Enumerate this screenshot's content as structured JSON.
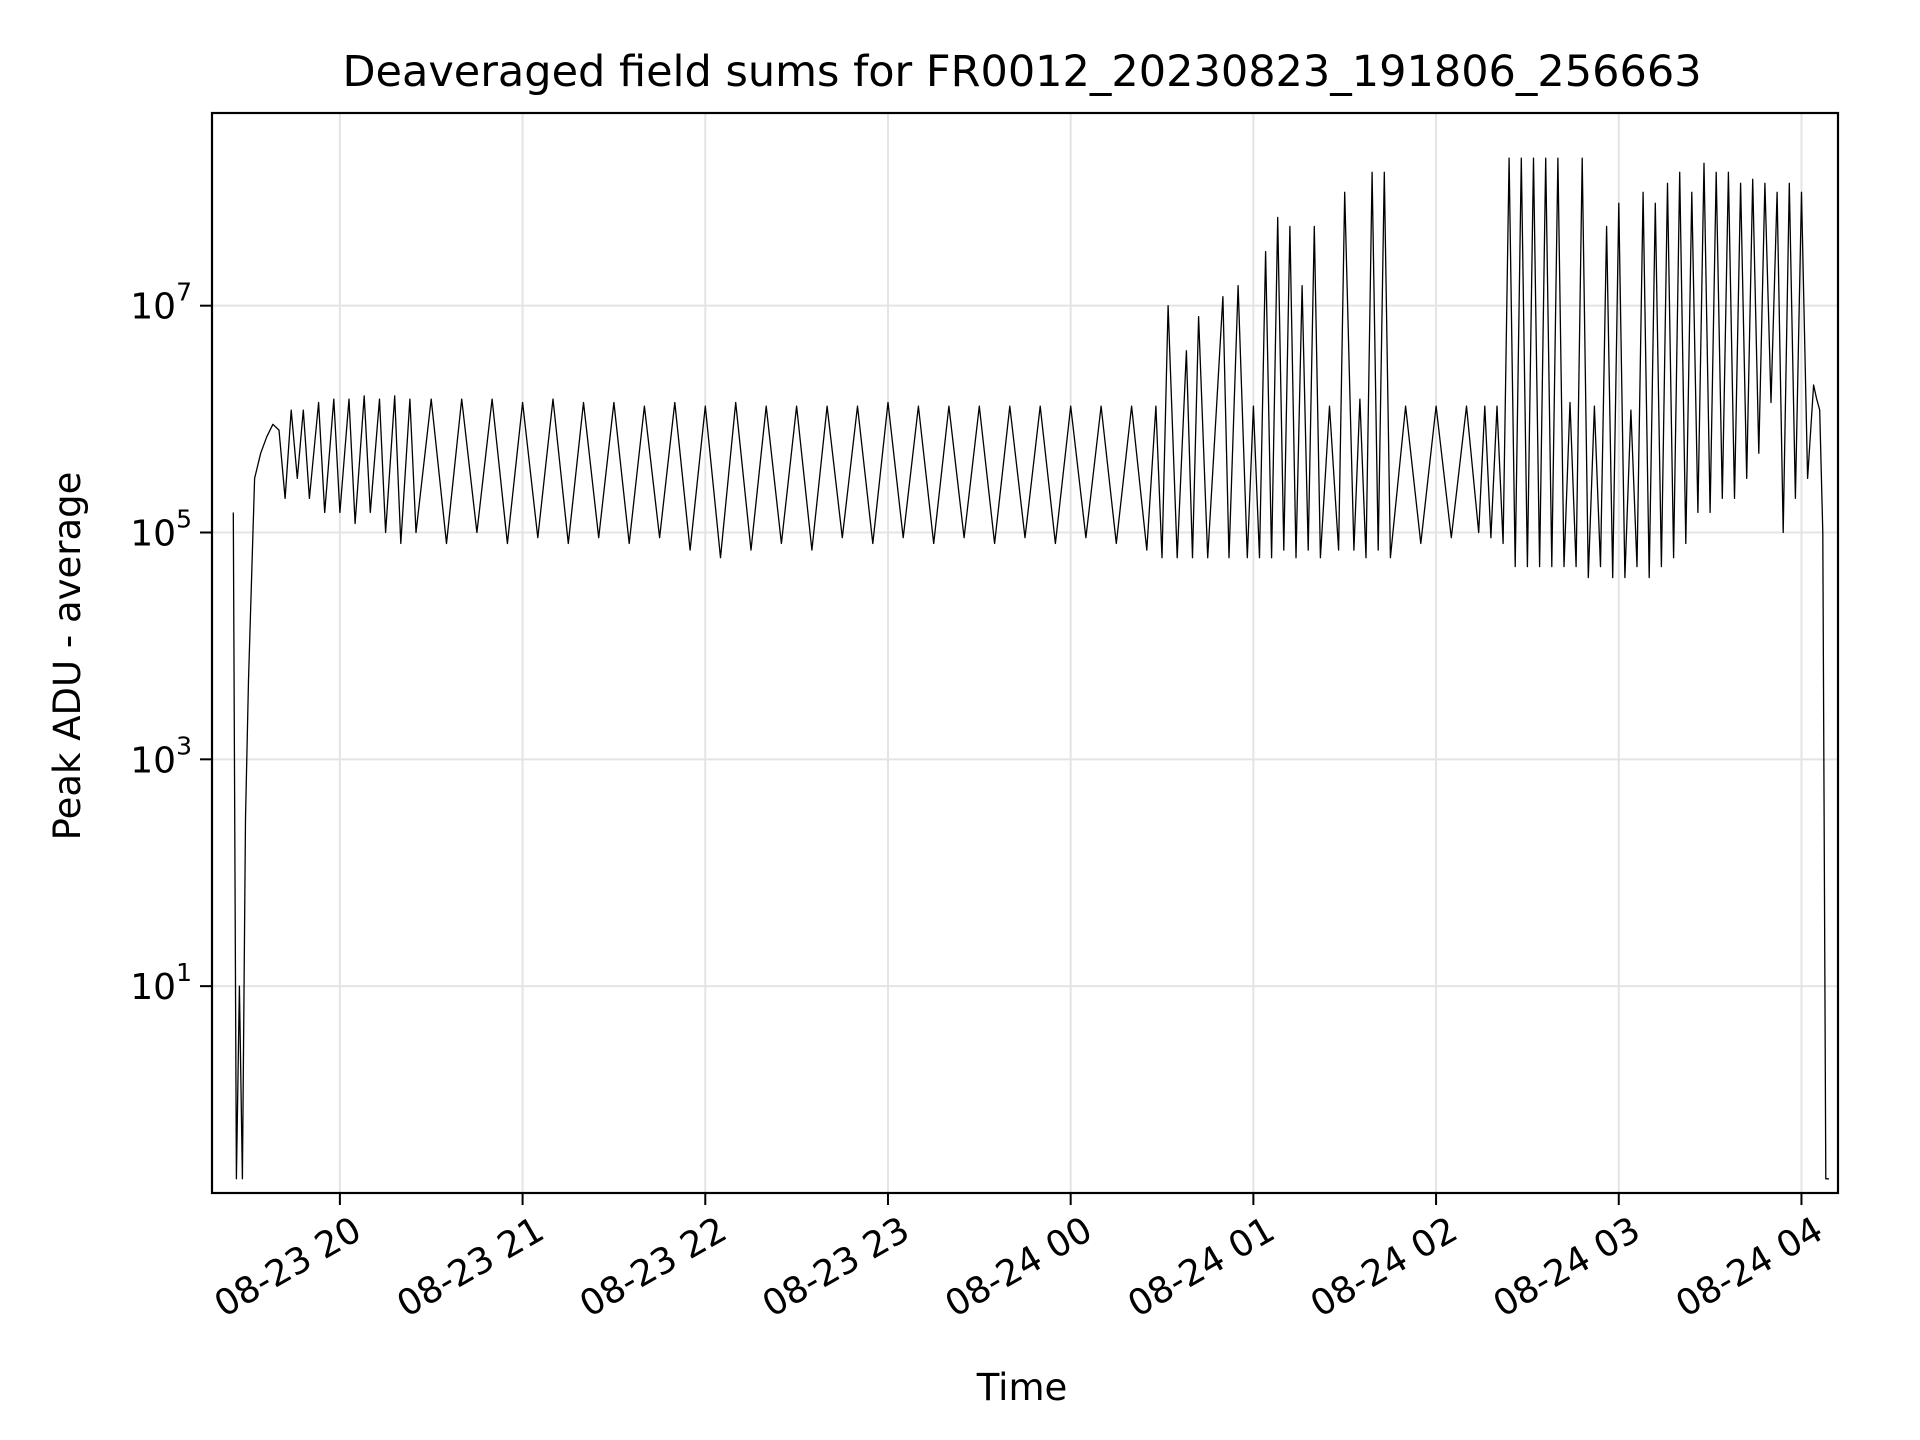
{
  "chart_data": {
    "type": "line",
    "title": "Deaveraged field sums for FR0012_20230823_191806_256663",
    "xlabel": "Time",
    "ylabel": "Peak ADU - average",
    "xscale": "time",
    "yscale": "log",
    "xlim": [
      "2023-08-23 19:18",
      "2023-08-24 04:12"
    ],
    "ylim": [
      0.15,
      500000000
    ],
    "grid": true,
    "line_color": "#000000",
    "grid_color": "#e4e4e4",
    "x_ticks": [
      {
        "value": "2023-08-23 20:00",
        "label": "08-23 20"
      },
      {
        "value": "2023-08-23 21:00",
        "label": "08-23 21"
      },
      {
        "value": "2023-08-23 22:00",
        "label": "08-23 22"
      },
      {
        "value": "2023-08-23 23:00",
        "label": "08-23 23"
      },
      {
        "value": "2023-08-24 00:00",
        "label": "08-24 00"
      },
      {
        "value": "2023-08-24 01:00",
        "label": "08-24 01"
      },
      {
        "value": "2023-08-24 02:00",
        "label": "08-24 02"
      },
      {
        "value": "2023-08-24 03:00",
        "label": "08-24 03"
      },
      {
        "value": "2023-08-24 04:00",
        "label": "08-24 04"
      }
    ],
    "y_ticks": [
      {
        "value": 10,
        "base": "10",
        "exp": "1"
      },
      {
        "value": 1000,
        "base": "10",
        "exp": "3"
      },
      {
        "value": 100000,
        "base": "10",
        "exp": "5"
      },
      {
        "value": 10000000,
        "base": "10",
        "exp": "7"
      }
    ],
    "series": [
      {
        "x": [
          "2023-08-23 19:25",
          "2023-08-23 19:26",
          "2023-08-23 19:27",
          "2023-08-23 19:28",
          "2023-08-23 19:29",
          "2023-08-23 19:30",
          "2023-08-23 19:32",
          "2023-08-23 19:34",
          "2023-08-23 19:36",
          "2023-08-23 19:38",
          "2023-08-23 19:40",
          "2023-08-23 19:42",
          "2023-08-23 19:44",
          "2023-08-23 19:46",
          "2023-08-23 19:48",
          "2023-08-23 19:50",
          "2023-08-23 19:53",
          "2023-08-23 19:55",
          "2023-08-23 19:58",
          "2023-08-23 20:00",
          "2023-08-23 20:03",
          "2023-08-23 20:05",
          "2023-08-23 20:08",
          "2023-08-23 20:10",
          "2023-08-23 20:13",
          "2023-08-23 20:15",
          "2023-08-23 20:18",
          "2023-08-23 20:20",
          "2023-08-23 20:23",
          "2023-08-23 20:25",
          "2023-08-23 20:30",
          "2023-08-23 20:35",
          "2023-08-23 20:40",
          "2023-08-23 20:45",
          "2023-08-23 20:50",
          "2023-08-23 20:55",
          "2023-08-23 21:00",
          "2023-08-23 21:05",
          "2023-08-23 21:10",
          "2023-08-23 21:15",
          "2023-08-23 21:20",
          "2023-08-23 21:25",
          "2023-08-23 21:30",
          "2023-08-23 21:35",
          "2023-08-23 21:40",
          "2023-08-23 21:45",
          "2023-08-23 21:50",
          "2023-08-23 21:55",
          "2023-08-23 22:00",
          "2023-08-23 22:05",
          "2023-08-23 22:10",
          "2023-08-23 22:15",
          "2023-08-23 22:20",
          "2023-08-23 22:25",
          "2023-08-23 22:30",
          "2023-08-23 22:35",
          "2023-08-23 22:40",
          "2023-08-23 22:45",
          "2023-08-23 22:50",
          "2023-08-23 22:55",
          "2023-08-23 23:00",
          "2023-08-23 23:05",
          "2023-08-23 23:10",
          "2023-08-23 23:15",
          "2023-08-23 23:20",
          "2023-08-23 23:25",
          "2023-08-23 23:30",
          "2023-08-23 23:35",
          "2023-08-23 23:40",
          "2023-08-23 23:45",
          "2023-08-23 23:50",
          "2023-08-23 23:55",
          "2023-08-24 00:00",
          "2023-08-24 00:05",
          "2023-08-24 00:10",
          "2023-08-24 00:15",
          "2023-08-24 00:20",
          "2023-08-24 00:25",
          "2023-08-24 00:28",
          "2023-08-24 00:30",
          "2023-08-24 00:32",
          "2023-08-24 00:35",
          "2023-08-24 00:38",
          "2023-08-24 00:40",
          "2023-08-24 00:42",
          "2023-08-24 00:45",
          "2023-08-24 00:48",
          "2023-08-24 00:50",
          "2023-08-24 00:52",
          "2023-08-24 00:55",
          "2023-08-24 00:58",
          "2023-08-24 01:00",
          "2023-08-24 01:02",
          "2023-08-24 01:04",
          "2023-08-24 01:06",
          "2023-08-24 01:08",
          "2023-08-24 01:10",
          "2023-08-24 01:12",
          "2023-08-24 01:14",
          "2023-08-24 01:16",
          "2023-08-24 01:18",
          "2023-08-24 01:20",
          "2023-08-24 01:22",
          "2023-08-24 01:25",
          "2023-08-24 01:28",
          "2023-08-24 01:30",
          "2023-08-24 01:33",
          "2023-08-24 01:35",
          "2023-08-24 01:37",
          "2023-08-24 01:39",
          "2023-08-24 01:41",
          "2023-08-24 01:43",
          "2023-08-24 01:45",
          "2023-08-24 01:50",
          "2023-08-24 01:55",
          "2023-08-24 02:00",
          "2023-08-24 02:05",
          "2023-08-24 02:10",
          "2023-08-24 02:14",
          "2023-08-24 02:16",
          "2023-08-24 02:18",
          "2023-08-24 02:20",
          "2023-08-24 02:22",
          "2023-08-24 02:24",
          "2023-08-24 02:26",
          "2023-08-24 02:28",
          "2023-08-24 02:30",
          "2023-08-24 02:32",
          "2023-08-24 02:34",
          "2023-08-24 02:36",
          "2023-08-24 02:38",
          "2023-08-24 02:40",
          "2023-08-24 02:42",
          "2023-08-24 02:44",
          "2023-08-24 02:46",
          "2023-08-24 02:48",
          "2023-08-24 02:50",
          "2023-08-24 02:52",
          "2023-08-24 02:54",
          "2023-08-24 02:56",
          "2023-08-24 02:58",
          "2023-08-24 03:00",
          "2023-08-24 03:02",
          "2023-08-24 03:04",
          "2023-08-24 03:06",
          "2023-08-24 03:08",
          "2023-08-24 03:10",
          "2023-08-24 03:12",
          "2023-08-24 03:14",
          "2023-08-24 03:16",
          "2023-08-24 03:18",
          "2023-08-24 03:20",
          "2023-08-24 03:22",
          "2023-08-24 03:24",
          "2023-08-24 03:26",
          "2023-08-24 03:28",
          "2023-08-24 03:30",
          "2023-08-24 03:32",
          "2023-08-24 03:34",
          "2023-08-24 03:36",
          "2023-08-24 03:38",
          "2023-08-24 03:40",
          "2023-08-24 03:42",
          "2023-08-24 03:44",
          "2023-08-24 03:46",
          "2023-08-24 03:48",
          "2023-08-24 03:50",
          "2023-08-24 03:52",
          "2023-08-24 03:54",
          "2023-08-24 03:56",
          "2023-08-24 03:58",
          "2023-08-24 04:00",
          "2023-08-24 04:02",
          "2023-08-24 04:04",
          "2023-08-24 04:05",
          "2023-08-24 04:06",
          "2023-08-24 04:07",
          "2023-08-24 04:08",
          "2023-08-24 04:09"
        ],
        "y": [
          150000.0,
          0.2,
          10.0,
          0.2,
          300.0,
          5000.0,
          300000.0,
          500000.0,
          700000.0,
          900000.0,
          800000.0,
          200000.0,
          1200000.0,
          300000.0,
          1200000.0,
          200000.0,
          1400000.0,
          150000.0,
          1500000.0,
          150000.0,
          1500000.0,
          120000.0,
          1600000.0,
          150000.0,
          1500000.0,
          100000.0,
          1600000.0,
          80000.0,
          1500000.0,
          100000.0,
          1500000.0,
          80000.0,
          1500000.0,
          100000.0,
          1500000.0,
          80000.0,
          1400000.0,
          90000.0,
          1500000.0,
          80000.0,
          1400000.0,
          90000.0,
          1400000.0,
          80000.0,
          1300000.0,
          90000.0,
          1400000.0,
          70000.0,
          1300000.0,
          60000.0,
          1400000.0,
          70000.0,
          1300000.0,
          80000.0,
          1300000.0,
          70000.0,
          1300000.0,
          90000.0,
          1300000.0,
          80000.0,
          1400000.0,
          90000.0,
          1300000.0,
          80000.0,
          1300000.0,
          90000.0,
          1300000.0,
          80000.0,
          1300000.0,
          90000.0,
          1300000.0,
          80000.0,
          1300000.0,
          90000.0,
          1300000.0,
          80000.0,
          1300000.0,
          70000.0,
          1300000.0,
          60000.0,
          10000000.0,
          60000.0,
          4000000.0,
          60000.0,
          8000000.0,
          60000.0,
          1400000.0,
          12000000.0,
          60000.0,
          15000000.0,
          60000.0,
          1300000.0,
          60000.0,
          30000000.0,
          60000.0,
          60000000.0,
          70000.0,
          50000000.0,
          60000.0,
          15000000.0,
          70000.0,
          50000000.0,
          60000.0,
          1300000.0,
          70000.0,
          100000000.0,
          70000.0,
          1500000.0,
          60000.0,
          150000000.0,
          70000.0,
          150000000.0,
          60000.0,
          1300000.0,
          80000.0,
          1300000.0,
          90000.0,
          1300000.0,
          100000.0,
          1300000.0,
          90000.0,
          1300000.0,
          80000.0,
          200000000.0,
          50000.0,
          200000000.0,
          50000.0,
          200000000.0,
          50000.0,
          200000000.0,
          50000.0,
          200000000.0,
          50000.0,
          1400000.0,
          50000.0,
          200000000.0,
          40000.0,
          1300000.0,
          50000.0,
          50000000.0,
          40000.0,
          80000000.0,
          40000.0,
          1200000.0,
          50000.0,
          100000000.0,
          40000.0,
          80000000.0,
          50000.0,
          120000000.0,
          60000.0,
          150000000.0,
          80000.0,
          100000000.0,
          150000.0,
          180000000.0,
          150000.0,
          150000000.0,
          200000.0,
          150000000.0,
          200000.0,
          120000000.0,
          300000.0,
          130000000.0,
          500000.0,
          120000000.0,
          1400000.0,
          100000000.0,
          100000.0,
          120000000.0,
          200000.0,
          100000000.0,
          300000.0,
          2000000.0,
          1500000.0,
          1200000.0,
          100000.0,
          0.2,
          0.2
        ]
      }
    ]
  }
}
